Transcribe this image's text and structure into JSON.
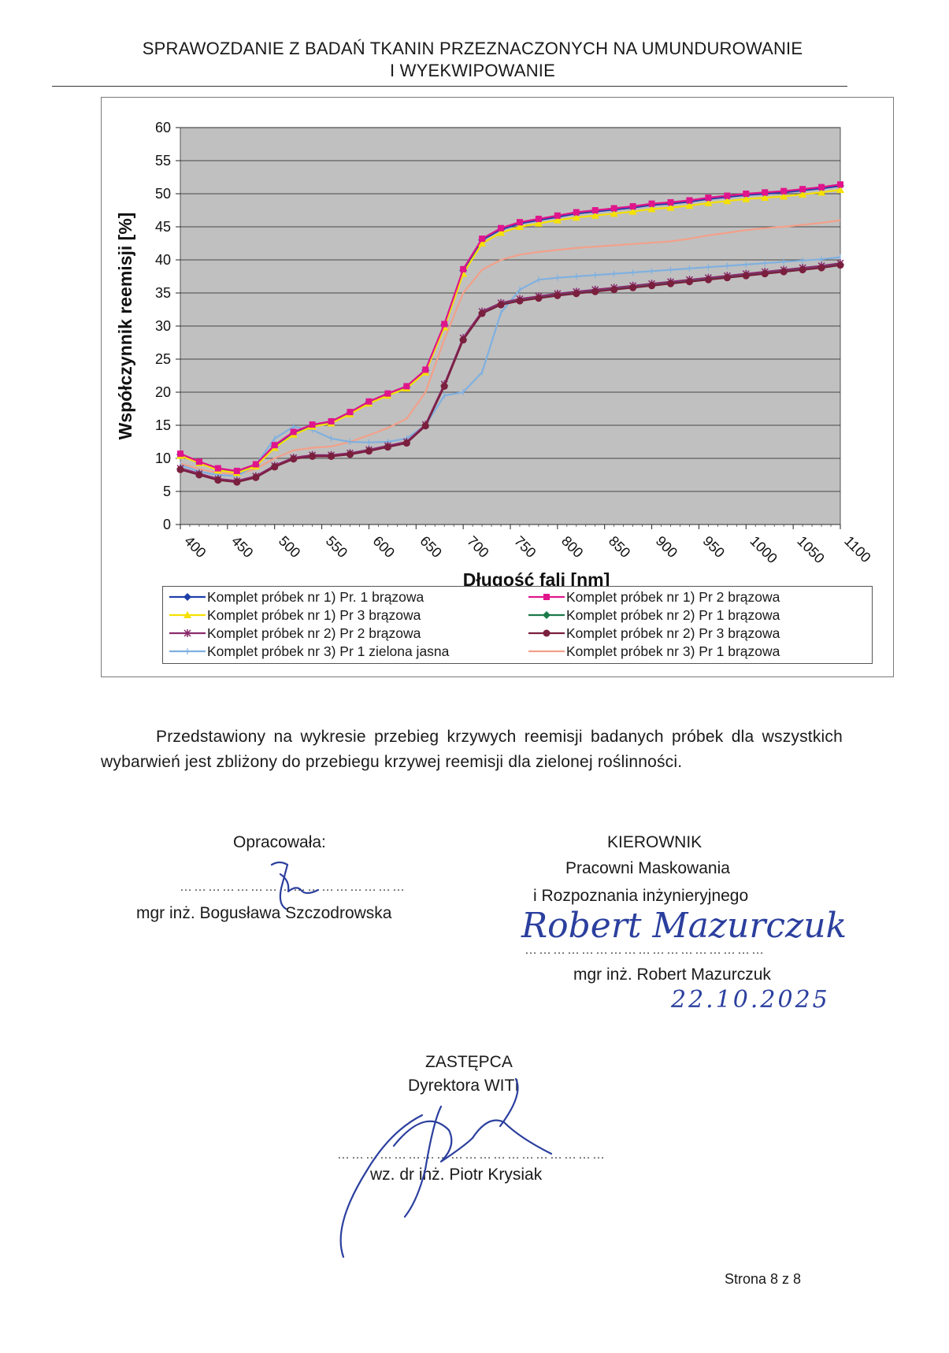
{
  "header": {
    "title_line1": "SPRAWOZDANIE Z BADAŃ TKANIN PRZEZNACZONYCH NA UMUNDUROWANIE",
    "title_line2": "I WYEKWIPOWANIE"
  },
  "chart_data": {
    "type": "line",
    "xlabel": "Długość fali [nm]",
    "ylabel": "Współczynnik reemisji [%]",
    "xlim": [
      400,
      1100
    ],
    "ylim": [
      0,
      60
    ],
    "x_ticks": [
      400,
      450,
      500,
      550,
      600,
      650,
      700,
      750,
      800,
      850,
      900,
      950,
      1000,
      1050,
      1100
    ],
    "y_ticks": [
      0,
      5,
      10,
      15,
      20,
      25,
      30,
      35,
      40,
      45,
      50,
      55,
      60
    ],
    "grid": "horizontal",
    "plot_background": "#c0c0c0",
    "legend_position": "bottom",
    "x": [
      400,
      420,
      440,
      460,
      480,
      500,
      520,
      540,
      560,
      580,
      600,
      620,
      640,
      660,
      680,
      700,
      720,
      740,
      760,
      780,
      800,
      820,
      840,
      860,
      880,
      900,
      920,
      940,
      960,
      980,
      1000,
      1020,
      1040,
      1060,
      1080,
      1100
    ],
    "series": [
      {
        "name": "Komplet próbek nr 1) Pr. 1 brązowa",
        "color": "#1f3fa8",
        "marker": "diamond",
        "values": [
          10.6,
          9.4,
          8.4,
          8.0,
          9.0,
          11.8,
          13.8,
          15.0,
          15.5,
          16.9,
          18.5,
          19.7,
          20.8,
          23.3,
          30.2,
          38.4,
          43.0,
          44.6,
          45.5,
          46.0,
          46.5,
          47.0,
          47.3,
          47.6,
          47.9,
          48.3,
          48.5,
          48.8,
          49.2,
          49.5,
          49.8,
          50.0,
          50.2,
          50.5,
          50.8,
          51.2
        ]
      },
      {
        "name": "Komplet próbek nr 1) Pr 2 brązowa",
        "color": "#e0158c",
        "marker": "square",
        "values": [
          10.7,
          9.5,
          8.5,
          8.1,
          9.1,
          12.0,
          14.0,
          15.1,
          15.6,
          17.0,
          18.6,
          19.8,
          20.9,
          23.4,
          30.3,
          38.6,
          43.2,
          44.8,
          45.7,
          46.2,
          46.7,
          47.2,
          47.5,
          47.8,
          48.1,
          48.5,
          48.7,
          49.0,
          49.4,
          49.7,
          50.0,
          50.2,
          50.4,
          50.7,
          51.0,
          51.4
        ]
      },
      {
        "name": "Komplet próbek nr 1) Pr 3 brązowa",
        "color": "#f5e000",
        "marker": "triangle",
        "values": [
          10.4,
          9.3,
          8.2,
          7.8,
          8.8,
          11.6,
          13.6,
          14.8,
          15.3,
          16.7,
          18.3,
          19.5,
          20.6,
          23.0,
          29.8,
          37.9,
          42.5,
          44.1,
          45.0,
          45.5,
          46.0,
          46.4,
          46.7,
          47.0,
          47.3,
          47.7,
          47.9,
          48.2,
          48.6,
          48.9,
          49.2,
          49.4,
          49.6,
          49.9,
          50.2,
          50.6
        ]
      },
      {
        "name": "Komplet próbek nr 2) Pr 1 brązowa",
        "color": "#1a7a4a",
        "marker": "diamond",
        "values": [
          8.4,
          7.6,
          6.8,
          6.5,
          7.2,
          8.8,
          10.0,
          10.4,
          10.4,
          10.7,
          11.2,
          11.8,
          12.4,
          15.0,
          21.0,
          28.0,
          32.0,
          33.3,
          33.9,
          34.3,
          34.7,
          35.0,
          35.3,
          35.6,
          35.9,
          36.2,
          36.5,
          36.8,
          37.1,
          37.4,
          37.7,
          38.0,
          38.3,
          38.6,
          38.9,
          39.3
        ]
      },
      {
        "name": "Komplet próbek nr 2) Pr 2 brązowa",
        "color": "#8a2b6e",
        "marker": "star",
        "values": [
          8.5,
          7.7,
          6.9,
          6.6,
          7.3,
          8.9,
          10.1,
          10.5,
          10.5,
          10.8,
          11.3,
          11.9,
          12.5,
          15.1,
          21.2,
          28.2,
          32.2,
          33.5,
          34.1,
          34.5,
          34.9,
          35.2,
          35.5,
          35.8,
          36.1,
          36.4,
          36.7,
          37.0,
          37.3,
          37.6,
          37.9,
          38.2,
          38.5,
          38.8,
          39.1,
          39.5
        ]
      },
      {
        "name": "Komplet próbek nr 2) Pr 3 brązowa",
        "color": "#7a1f3d",
        "marker": "circle",
        "values": [
          8.3,
          7.5,
          6.7,
          6.4,
          7.1,
          8.7,
          9.9,
          10.3,
          10.3,
          10.6,
          11.1,
          11.7,
          12.3,
          14.9,
          20.9,
          27.9,
          31.9,
          33.2,
          33.8,
          34.2,
          34.6,
          34.9,
          35.2,
          35.5,
          35.8,
          36.1,
          36.4,
          36.7,
          37.0,
          37.3,
          37.6,
          37.9,
          38.2,
          38.5,
          38.8,
          39.2
        ]
      },
      {
        "name": "Komplet próbek nr 3) Pr 1 zielona jasna",
        "color": "#7fb0e0",
        "marker": "plus",
        "values": [
          9.0,
          8.0,
          7.5,
          7.3,
          9.0,
          13.0,
          14.8,
          14.3,
          13.0,
          12.5,
          12.4,
          12.5,
          13.0,
          15.0,
          19.5,
          20.0,
          23.0,
          32.0,
          35.5,
          37.0,
          37.3,
          37.5,
          37.7,
          37.9,
          38.1,
          38.3,
          38.5,
          38.7,
          38.9,
          39.1,
          39.3,
          39.5,
          39.7,
          39.9,
          40.1,
          40.4
        ]
      },
      {
        "name": "Komplet próbek nr 3) Pr 1 brązowa",
        "color": "#f2a08a",
        "marker": "none",
        "values": [
          9.2,
          8.4,
          7.8,
          7.6,
          8.4,
          10.0,
          11.2,
          11.6,
          11.8,
          12.5,
          13.5,
          14.6,
          16.0,
          20.0,
          28.0,
          35.0,
          38.5,
          40.0,
          40.8,
          41.2,
          41.5,
          41.8,
          42.0,
          42.2,
          42.4,
          42.6,
          42.8,
          43.2,
          43.7,
          44.1,
          44.5,
          44.8,
          45.0,
          45.3,
          45.6,
          46.0
        ]
      }
    ]
  },
  "body": {
    "paragraph": "Przedstawiony na wykresie przebieg krzywych reemisji badanych próbek dla wszystkich wybarwień jest zbliżony do przebiegu krzywej reemisji dla zielonej roślinności."
  },
  "signatures": {
    "left_label": "Opracowała:",
    "left_dots": "…………………………………………",
    "left_name": "mgr inż. Bogusława Szczodrowska",
    "right_title": "KIEROWNIK",
    "right_line2": "Pracowni Maskowania",
    "right_line3": "i Rozpoznania inżynieryjnego",
    "right_dots": "……………………………………………",
    "right_name": "mgr inż. Robert Mazurczuk",
    "right_signature_text": "Robert Mazurczuk",
    "right_date": "22.10.2025",
    "center_title": "ZASTĘPCA",
    "center_line2": "Dyrektora WITI",
    "center_dots": "…………………………………………………",
    "center_name": "wz. dr inż. Piotr Krysiak"
  },
  "footer": {
    "page_number": "Strona 8 z 8"
  },
  "colors": {
    "ink": "#2b3f9e",
    "plot_background": "#c0c0c0"
  }
}
